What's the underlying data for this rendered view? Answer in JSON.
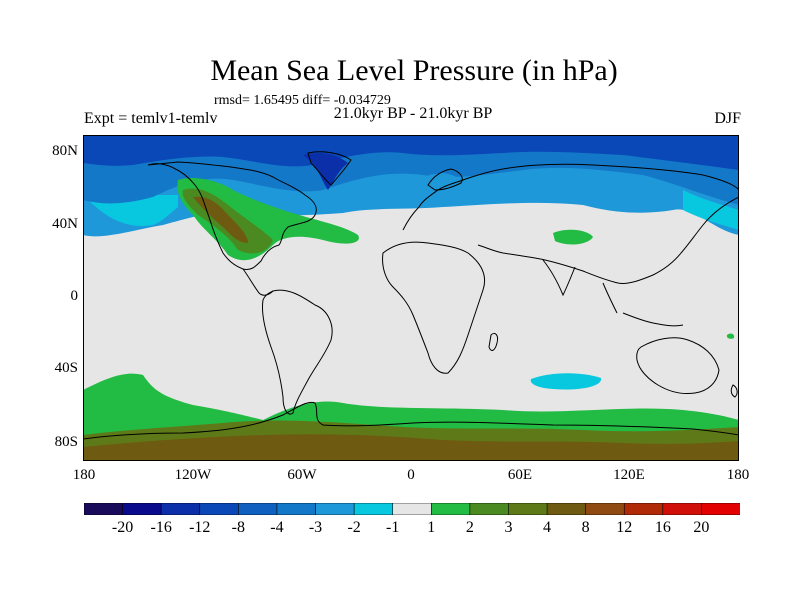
{
  "title": "Mean Sea Level Pressure (in hPa)",
  "stats_text": "rmsd= 1.65495 diff= -0.034729",
  "period_text": "21.0kyr BP - 21.0kyr BP",
  "expt_text": "Expt = temlv1-temlv",
  "season": "DJF",
  "lat_labels": [
    "80N",
    "40N",
    "0",
    "40S",
    "80S"
  ],
  "lon_labels": [
    "180",
    "120W",
    "60W",
    "0",
    "60E",
    "120E",
    "180"
  ],
  "colorbar": {
    "labels": [
      "-20",
      "-16",
      "-12",
      "-8",
      "-4",
      "-3",
      "-2",
      "-1",
      "1",
      "2",
      "3",
      "4",
      "8",
      "12",
      "16",
      "20"
    ],
    "colors": [
      "#1a0a5a",
      "#0a0a8c",
      "#0a2fa8",
      "#0a48b8",
      "#1060c0",
      "#1478c8",
      "#1e98d8",
      "#08c8e0",
      "#e6e6e6",
      "#22bb44",
      "#4a8a20",
      "#5e7a18",
      "#6e5a10",
      "#8e4a10",
      "#b02a08",
      "#d01008",
      "#e20000"
    ]
  },
  "colors": {
    "background": "#e6e6e6",
    "coast": "#000000"
  }
}
